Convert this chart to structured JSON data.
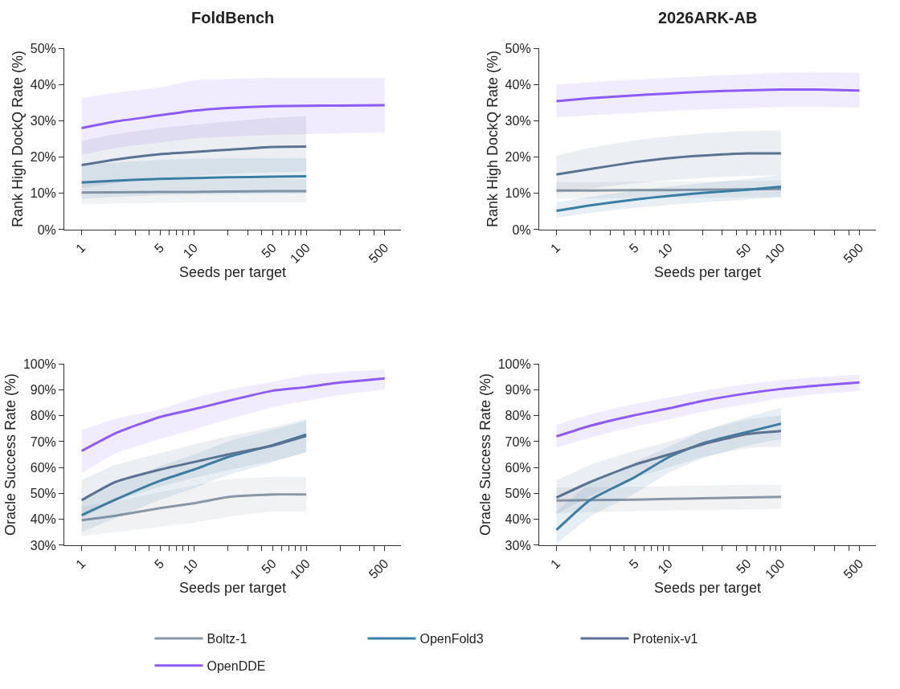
{
  "chart_data": [
    {
      "type": "line",
      "title": "FoldBench",
      "xlabel": "Seeds per target",
      "ylabel": "Rank High DockQ Rate (%)",
      "log": "x",
      "legend": "bottom",
      "grid": false,
      "marker": "none",
      "line_style": "solid",
      "xlim": [
        0.7,
        700
      ],
      "xticks": [
        1,
        {
          "value": 2,
          "label": null
        },
        {
          "value": 3,
          "label": null
        },
        {
          "value": 4,
          "label": null
        },
        5,
        {
          "value": 6,
          "label": null
        },
        {
          "value": 7,
          "label": null
        },
        {
          "value": 8,
          "label": null
        },
        {
          "value": 9,
          "label": null
        },
        10,
        {
          "value": 20,
          "label": null
        },
        {
          "value": 30,
          "label": null
        },
        {
          "value": 40,
          "label": null
        },
        50,
        {
          "value": 60,
          "label": null
        },
        {
          "value": 70,
          "label": null
        },
        {
          "value": 80,
          "label": null
        },
        {
          "value": 90,
          "label": null
        },
        100,
        {
          "value": 200,
          "label": null
        },
        {
          "value": 300,
          "label": null
        },
        {
          "value": 400,
          "label": null
        },
        500
      ],
      "ylim": [
        0,
        50
      ],
      "yticks": [
        {
          "value": 0,
          "label": "0%"
        },
        {
          "value": 10,
          "label": "10%"
        },
        {
          "value": 20,
          "label": "20%"
        },
        {
          "value": 30,
          "label": "30%"
        },
        {
          "value": 40,
          "label": "40%"
        },
        {
          "value": 50,
          "label": "50%"
        }
      ],
      "series": [
        {
          "name": "Boltz-1",
          "color": "#8a96a3",
          "x": [
            1,
            2,
            5,
            10,
            20,
            50,
            100
          ],
          "values": [
            10.2,
            10.3,
            10.4,
            10.4,
            10.5,
            10.6,
            10.6
          ],
          "lower": [
            7.0,
            7.2,
            7.4,
            7.5,
            7.5,
            7.5,
            7.5
          ],
          "upper": [
            13.5,
            13.6,
            13.7,
            13.8,
            13.9,
            14.0,
            14.0
          ]
        },
        {
          "name": "OpenFold3",
          "color": "#3a7fa3",
          "x": [
            1,
            2,
            5,
            10,
            20,
            50,
            100
          ],
          "values": [
            13.0,
            13.5,
            14.0,
            14.2,
            14.4,
            14.6,
            14.7
          ],
          "lower": [
            8.5,
            9.0,
            9.5,
            9.7,
            9.8,
            9.9,
            10.0
          ],
          "upper": [
            17.5,
            18.5,
            19.2,
            19.5,
            19.6,
            19.7,
            19.7
          ]
        },
        {
          "name": "Protenix-v1",
          "color": "#5b7390",
          "x": [
            1,
            2,
            5,
            10,
            20,
            50,
            100
          ],
          "values": [
            17.8,
            19.3,
            20.8,
            21.4,
            22.0,
            22.8,
            22.9
          ],
          "lower": [
            11.5,
            12.8,
            14.2,
            14.8,
            15.3,
            15.8,
            16.0
          ],
          "upper": [
            24.4,
            26.3,
            28.0,
            28.9,
            29.8,
            30.8,
            31.3
          ]
        },
        {
          "name": "OpenDDE",
          "color": "#8b5cf6",
          "x": [
            1,
            2,
            5,
            10,
            20,
            50,
            100,
            200,
            500
          ],
          "values": [
            28.0,
            29.8,
            31.5,
            32.8,
            33.5,
            34.0,
            34.1,
            34.2,
            34.3
          ],
          "lower": [
            20.6,
            22.5,
            24.0,
            25.1,
            25.6,
            26.1,
            26.3,
            26.6,
            26.8
          ],
          "upper": [
            36.2,
            37.7,
            39.2,
            41.1,
            41.5,
            41.8,
            41.8,
            41.8,
            41.8
          ]
        }
      ]
    },
    {
      "type": "line",
      "title": "2026ARK-AB",
      "xlabel": "Seeds per target",
      "ylabel": "Rank High DockQ Rate (%)",
      "log": "x",
      "grid": false,
      "marker": "none",
      "line_style": "solid",
      "xlim": [
        0.7,
        700
      ],
      "xticks": [
        1,
        {
          "value": 2,
          "label": null
        },
        {
          "value": 3,
          "label": null
        },
        {
          "value": 4,
          "label": null
        },
        5,
        {
          "value": 6,
          "label": null
        },
        {
          "value": 7,
          "label": null
        },
        {
          "value": 8,
          "label": null
        },
        {
          "value": 9,
          "label": null
        },
        10,
        {
          "value": 20,
          "label": null
        },
        {
          "value": 30,
          "label": null
        },
        {
          "value": 40,
          "label": null
        },
        50,
        {
          "value": 60,
          "label": null
        },
        {
          "value": 70,
          "label": null
        },
        {
          "value": 80,
          "label": null
        },
        {
          "value": 90,
          "label": null
        },
        100,
        {
          "value": 200,
          "label": null
        },
        {
          "value": 300,
          "label": null
        },
        {
          "value": 400,
          "label": null
        },
        500
      ],
      "ylim": [
        0,
        50
      ],
      "yticks": [
        {
          "value": 0,
          "label": "0%"
        },
        {
          "value": 10,
          "label": "10%"
        },
        {
          "value": 20,
          "label": "20%"
        },
        {
          "value": 30,
          "label": "30%"
        },
        {
          "value": 40,
          "label": "40%"
        },
        {
          "value": 50,
          "label": "50%"
        }
      ],
      "series": [
        {
          "color": "#8a96a3",
          "x": [
            1,
            2,
            5,
            10,
            20,
            50,
            100
          ],
          "values": [
            10.8,
            10.8,
            10.9,
            10.9,
            11.0,
            11.1,
            11.2
          ],
          "lower": [
            8.5,
            8.6,
            8.7,
            8.8,
            8.8,
            8.9,
            9.0
          ],
          "upper": [
            13.1,
            13.1,
            13.2,
            13.2,
            13.3,
            13.4,
            13.5
          ]
        },
        {
          "color": "#3a7fa3",
          "x": [
            1,
            2,
            5,
            10,
            20,
            50,
            100
          ],
          "values": [
            5.2,
            6.7,
            8.3,
            9.3,
            10.1,
            11.0,
            11.8
          ],
          "lower": [
            3.3,
            4.6,
            6.0,
            6.8,
            7.5,
            8.3,
            8.9
          ],
          "upper": [
            7.5,
            9.0,
            10.8,
            11.8,
            12.8,
            14.0,
            15.0
          ]
        },
        {
          "color": "#5b7390",
          "x": [
            1,
            2,
            5,
            10,
            20,
            50,
            100
          ],
          "values": [
            15.2,
            16.7,
            18.6,
            19.7,
            20.4,
            21.0,
            21.0
          ],
          "lower": [
            10.0,
            11.3,
            12.8,
            13.6,
            14.2,
            14.8,
            15.0
          ],
          "upper": [
            20.4,
            22.5,
            24.6,
            25.7,
            26.5,
            27.2,
            27.3
          ]
        },
        {
          "color": "#8b5cf6",
          "x": [
            1,
            2,
            5,
            10,
            20,
            50,
            100,
            200,
            500
          ],
          "values": [
            35.4,
            36.2,
            37.0,
            37.5,
            38.0,
            38.4,
            38.6,
            38.6,
            38.3
          ],
          "lower": [
            30.9,
            31.5,
            32.2,
            32.7,
            33.1,
            33.5,
            33.8,
            33.9,
            33.6
          ],
          "upper": [
            40.0,
            40.6,
            41.3,
            41.8,
            42.3,
            42.8,
            43.2,
            43.4,
            43.2
          ]
        }
      ]
    },
    {
      "type": "line",
      "xlabel": "Seeds per target",
      "ylabel": "Oracle Success Rate (%)",
      "log": "x",
      "grid": false,
      "marker": "none",
      "line_style": "solid",
      "xlim": [
        0.7,
        700
      ],
      "xticks": [
        1,
        {
          "value": 2,
          "label": null
        },
        {
          "value": 3,
          "label": null
        },
        {
          "value": 4,
          "label": null
        },
        5,
        {
          "value": 6,
          "label": null
        },
        {
          "value": 7,
          "label": null
        },
        {
          "value": 8,
          "label": null
        },
        {
          "value": 9,
          "label": null
        },
        10,
        {
          "value": 20,
          "label": null
        },
        {
          "value": 30,
          "label": null
        },
        {
          "value": 40,
          "label": null
        },
        50,
        {
          "value": 60,
          "label": null
        },
        {
          "value": 70,
          "label": null
        },
        {
          "value": 80,
          "label": null
        },
        {
          "value": 90,
          "label": null
        },
        100,
        {
          "value": 200,
          "label": null
        },
        {
          "value": 300,
          "label": null
        },
        {
          "value": 400,
          "label": null
        },
        500
      ],
      "ylim": [
        30,
        100
      ],
      "yticks": [
        {
          "value": 30,
          "label": "30%"
        },
        {
          "value": 40,
          "label": "40%"
        },
        {
          "value": 50,
          "label": "50%"
        },
        {
          "value": 60,
          "label": "60%"
        },
        {
          "value": 70,
          "label": "70%"
        },
        {
          "value": 80,
          "label": "80%"
        },
        {
          "value": 90,
          "label": "90%"
        },
        {
          "value": 100,
          "label": "100%"
        }
      ],
      "series": [
        {
          "color": "#8a96a3",
          "x": [
            1,
            2,
            5,
            10,
            20,
            50,
            100
          ],
          "values": [
            39.7,
            41.4,
            44.3,
            46.2,
            48.6,
            49.6,
            49.6
          ],
          "lower": [
            33.6,
            35.0,
            37.2,
            38.7,
            41.0,
            42.9,
            42.9
          ],
          "upper": [
            45.0,
            47.0,
            50.5,
            53.0,
            55.5,
            56.3,
            56.3
          ]
        },
        {
          "color": "#3a7fa3",
          "x": [
            1,
            2,
            5,
            10,
            20,
            50,
            100
          ],
          "values": [
            41.6,
            47.6,
            54.9,
            59.2,
            64.0,
            68.6,
            72.7
          ],
          "lower": [
            35.0,
            40.5,
            47.5,
            52.0,
            57.0,
            62.0,
            66.0
          ],
          "upper": [
            47.0,
            53.5,
            60.5,
            65.0,
            70.0,
            74.5,
            78.0
          ]
        },
        {
          "color": "#5b7390",
          "x": [
            1,
            2,
            5,
            10,
            20,
            50,
            100
          ],
          "values": [
            47.4,
            54.4,
            59.2,
            62.1,
            65.0,
            68.4,
            72.2
          ],
          "lower": [
            40.5,
            47.0,
            52.5,
            56.0,
            59.0,
            62.5,
            65.8
          ],
          "upper": [
            55.2,
            61.0,
            65.5,
            68.9,
            72.0,
            75.5,
            78.7
          ]
        },
        {
          "color": "#8b5cf6",
          "x": [
            1,
            2,
            5,
            10,
            20,
            50,
            100,
            200,
            500
          ],
          "values": [
            66.4,
            73.2,
            79.5,
            82.5,
            85.7,
            89.6,
            91.0,
            92.8,
            94.4
          ],
          "lower": [
            57.8,
            65.5,
            71.0,
            74.8,
            78.5,
            83.3,
            85.7,
            88.0,
            90.1
          ],
          "upper": [
            74.4,
            78.8,
            82.4,
            86.7,
            90.0,
            93.0,
            95.6,
            96.8,
            97.8
          ]
        }
      ]
    },
    {
      "type": "line",
      "xlabel": "Seeds per target",
      "ylabel": "Oracle Success Rate (%)",
      "log": "x",
      "grid": false,
      "marker": "none",
      "line_style": "solid",
      "xlim": [
        0.7,
        700
      ],
      "xticks": [
        1,
        {
          "value": 2,
          "label": null
        },
        {
          "value": 3,
          "label": null
        },
        {
          "value": 4,
          "label": null
        },
        5,
        {
          "value": 6,
          "label": null
        },
        {
          "value": 7,
          "label": null
        },
        {
          "value": 8,
          "label": null
        },
        {
          "value": 9,
          "label": null
        },
        10,
        {
          "value": 20,
          "label": null
        },
        {
          "value": 30,
          "label": null
        },
        {
          "value": 40,
          "label": null
        },
        50,
        {
          "value": 60,
          "label": null
        },
        {
          "value": 70,
          "label": null
        },
        {
          "value": 80,
          "label": null
        },
        {
          "value": 90,
          "label": null
        },
        100,
        {
          "value": 200,
          "label": null
        },
        {
          "value": 300,
          "label": null
        },
        {
          "value": 400,
          "label": null
        },
        500
      ],
      "ylim": [
        30,
        100
      ],
      "yticks": [
        {
          "value": 30,
          "label": "30%"
        },
        {
          "value": 40,
          "label": "40%"
        },
        {
          "value": 50,
          "label": "50%"
        },
        {
          "value": 60,
          "label": "60%"
        },
        {
          "value": 70,
          "label": "70%"
        },
        {
          "value": 80,
          "label": "80%"
        },
        {
          "value": 90,
          "label": "90%"
        },
        {
          "value": 100,
          "label": "100%"
        }
      ],
      "series": [
        {
          "color": "#8a96a3",
          "x": [
            1,
            2,
            5,
            10,
            20,
            50,
            100
          ],
          "values": [
            47.3,
            47.4,
            47.6,
            47.9,
            48.1,
            48.4,
            48.7
          ],
          "lower": [
            42.5,
            42.8,
            43.1,
            43.4,
            43.6,
            43.8,
            44.0
          ],
          "upper": [
            52.3,
            52.4,
            52.6,
            52.8,
            53.0,
            53.3,
            53.5
          ]
        },
        {
          "color": "#3a7fa3",
          "x": [
            1,
            2,
            5,
            10,
            20,
            50,
            100
          ],
          "values": [
            35.9,
            47.5,
            56.3,
            64.0,
            69.3,
            73.7,
            76.9
          ],
          "lower": [
            30.5,
            41.0,
            50.0,
            58.0,
            63.5,
            68.5,
            71.0
          ],
          "upper": [
            43.0,
            54.0,
            62.0,
            68.0,
            74.0,
            79.5,
            83.0
          ]
        },
        {
          "color": "#5b7390",
          "x": [
            1,
            2,
            5,
            10,
            20,
            50,
            100
          ],
          "values": [
            48.4,
            54.4,
            61.1,
            65.0,
            68.9,
            72.9,
            74.1
          ],
          "lower": [
            42.0,
            49.0,
            56.0,
            60.0,
            64.0,
            67.5,
            68.0
          ],
          "upper": [
            55.0,
            61.0,
            66.5,
            70.0,
            74.0,
            78.5,
            80.0
          ]
        },
        {
          "color": "#8b5cf6",
          "x": [
            1,
            2,
            5,
            10,
            20,
            50,
            100,
            200,
            500
          ],
          "values": [
            72.0,
            76.1,
            80.2,
            82.8,
            85.7,
            88.6,
            90.3,
            91.5,
            92.8
          ],
          "lower": [
            67.7,
            71.5,
            75.8,
            78.5,
            81.5,
            84.5,
            86.8,
            88.2,
            89.5
          ],
          "upper": [
            76.5,
            80.5,
            84.5,
            87.0,
            89.5,
            92.2,
            93.6,
            94.8,
            95.8
          ]
        }
      ]
    }
  ]
}
